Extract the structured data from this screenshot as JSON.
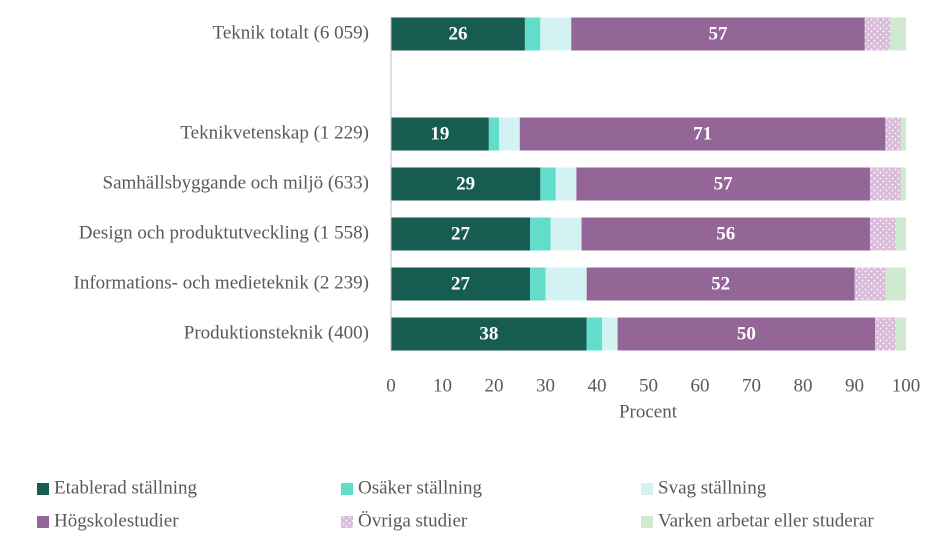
{
  "chart_data": {
    "type": "stacked_bar_horizontal",
    "categories": [
      "Teknik totalt (6 059)",
      null,
      "Teknikvetenskap (1 229)",
      "Samhällsbyggande och miljö (633)",
      "Design och produktutveckling (1 558)",
      "Informations- och medieteknik (2 239)",
      "Produktionsteknik (400)"
    ],
    "series": [
      {
        "name": "Etablerad ställning",
        "color": "#175c51",
        "values": [
          26,
          null,
          19,
          29,
          27,
          27,
          38
        ],
        "labels": true
      },
      {
        "name": "Osäker ställning",
        "color": "#62dccb",
        "values": [
          3,
          null,
          2,
          3,
          4,
          3,
          3
        ]
      },
      {
        "name": "Svag ställning",
        "color": "#d2f3f1",
        "values": [
          6,
          null,
          4,
          4,
          6,
          8,
          3
        ]
      },
      {
        "name": "Högskolestudier",
        "color": "#936697",
        "values": [
          57,
          null,
          71,
          57,
          56,
          52,
          50
        ],
        "labels": true
      },
      {
        "name": "Övriga studier",
        "color": "#d9bcd9",
        "values": [
          5,
          null,
          3,
          6,
          5,
          6,
          4
        ],
        "pattern": "dots"
      },
      {
        "name": "Varken arbetar eller studerar",
        "color": "#cfeacf",
        "values": [
          3,
          null,
          1,
          1,
          2,
          4,
          2
        ]
      }
    ],
    "xlabel": "Procent",
    "xlim": [
      0,
      100
    ],
    "xticks": [
      0,
      10,
      20,
      30,
      40,
      50,
      60,
      70,
      80,
      90,
      100
    ],
    "legend": "bottom"
  }
}
